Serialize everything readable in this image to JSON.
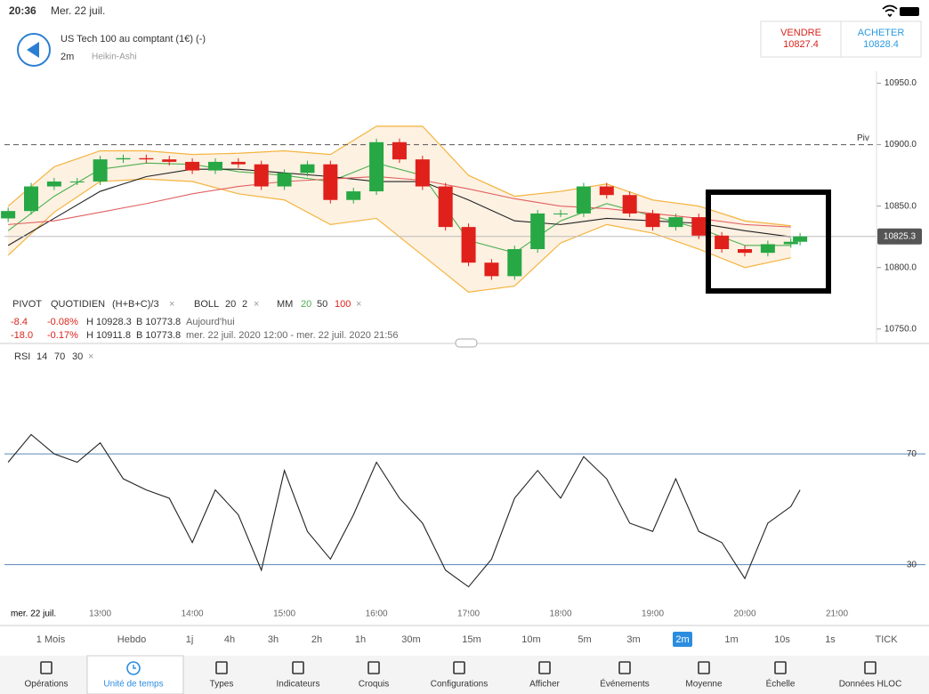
{
  "status_bar": {
    "time": "20:36",
    "date": "Mer. 22 juil."
  },
  "header": {
    "instrument": "US Tech 100 au comptant (1€) (-)",
    "interval": "2m",
    "chart_style": "Heikin-Ashi",
    "sell": {
      "label": "VENDRE",
      "price": 10827.4
    },
    "buy": {
      "label": "ACHETER",
      "price": 10828.4
    }
  },
  "legend": {
    "pivot": [
      "PIVOT",
      "QUOTIDIEN",
      "(H+B+C)/3"
    ],
    "boll": [
      "BOLL",
      "20",
      "2"
    ],
    "mm": [
      "MM",
      "20",
      "50",
      "100"
    ],
    "today": [
      "-8.4",
      "-0.08%",
      "H 10928.3",
      "B 10773.8",
      "Aujourd'hui"
    ],
    "range": [
      "-18.0",
      "-0.17%",
      "H 10911.8",
      "B 10773.8",
      "mer. 22 juil. 2020 12:00 - mer. 22 juil. 2020 21:56"
    ],
    "rsi": [
      "RSI",
      "14",
      "70",
      "30"
    ]
  },
  "chart_data": [
    {
      "type": "candlestick",
      "x": [
        12,
        12.25,
        12.5,
        12.75,
        13,
        13.25,
        13.5,
        13.75,
        14,
        14.25,
        14.5,
        14.75,
        15,
        15.25,
        15.5,
        15.75,
        16,
        16.25,
        16.5,
        16.75,
        17,
        17.25,
        17.5,
        17.75,
        18,
        18.25,
        18.5,
        18.75,
        19,
        19.25,
        19.5,
        19.75,
        20,
        20.25,
        20.5,
        20.6
      ],
      "open": [
        10840,
        10846,
        10866,
        10870,
        10870,
        10888,
        10889,
        10888,
        10886,
        10879,
        10886,
        10884,
        10866,
        10877,
        10884,
        10855,
        10862,
        10902,
        10888,
        10866,
        10833,
        10804,
        10793,
        10815,
        10844,
        10844,
        10866,
        10859,
        10844,
        10833,
        10841,
        10826,
        10815,
        10812,
        10819,
        10821
      ],
      "close": [
        10846,
        10866,
        10870,
        10870,
        10888,
        10889,
        10888,
        10886,
        10879,
        10886,
        10884,
        10866,
        10877,
        10884,
        10855,
        10862,
        10902,
        10888,
        10866,
        10833,
        10804,
        10793,
        10815,
        10844,
        10844,
        10866,
        10859,
        10844,
        10833,
        10841,
        10826,
        10815,
        10812,
        10819,
        10821,
        10825.3
      ],
      "up_color": "#27a844",
      "down_color": "#e0201b",
      "bands": {
        "x": [
          12,
          12.5,
          13,
          13.5,
          14,
          14.5,
          15,
          15.5,
          16,
          16.5,
          17,
          17.5,
          18,
          18.5,
          19,
          19.5,
          20,
          20.5
        ],
        "upper": [
          10850,
          10882,
          10895,
          10895,
          10892,
          10893,
          10895,
          10892,
          10915,
          10915,
          10875,
          10858,
          10862,
          10868,
          10855,
          10850,
          10838,
          10834
        ],
        "lower": [
          10810,
          10845,
          10870,
          10872,
          10870,
          10860,
          10855,
          10835,
          10840,
          10810,
          10780,
          10785,
          10820,
          10835,
          10828,
          10815,
          10800,
          10808
        ],
        "color": "#f4b43f",
        "fill": "#fdf1e2"
      },
      "moving_averages": [
        {
          "color": "#4caf50",
          "values": [
            10830,
            10858,
            10880,
            10885,
            10884,
            10878,
            10875,
            10870,
            10885,
            10875,
            10822,
            10812,
            10838,
            10852,
            10842,
            10832,
            10818,
            10818
          ]
        },
        {
          "color": "#222222",
          "values": [
            10818,
            10840,
            10862,
            10874,
            10880,
            10880,
            10877,
            10874,
            10870,
            10870,
            10855,
            10838,
            10835,
            10840,
            10838,
            10836,
            10830,
            10825
          ]
        },
        {
          "color": "#e06060",
          "values": [
            10835,
            10838,
            10845,
            10852,
            10860,
            10866,
            10870,
            10872,
            10874,
            10871,
            10864,
            10856,
            10850,
            10848,
            10844,
            10840,
            10835,
            10833
          ]
        }
      ],
      "pivot": {
        "label": "Piv",
        "value": 10900
      },
      "last_price": 10825.3,
      "xlim": [
        11.96,
        21.43
      ],
      "ylim": [
        10739,
        10967
      ],
      "yticks": [
        {
          "value": 10950,
          "label": "10950.0"
        },
        {
          "value": 10900,
          "label": "10900.0"
        },
        {
          "value": 10850,
          "label": "10850.0"
        },
        {
          "value": 10800,
          "label": "10800.0"
        },
        {
          "value": 10750,
          "label": "10750.0"
        }
      ]
    },
    {
      "type": "line",
      "x": [
        12,
        12.25,
        12.5,
        12.75,
        13,
        13.25,
        13.5,
        13.75,
        14,
        14.25,
        14.5,
        14.75,
        15,
        15.25,
        15.5,
        15.75,
        16,
        16.25,
        16.5,
        16.75,
        17,
        17.25,
        17.5,
        17.75,
        18,
        18.25,
        18.5,
        18.75,
        19,
        19.25,
        19.5,
        19.75,
        20,
        20.25,
        20.5,
        20.6
      ],
      "values": [
        67,
        77,
        70,
        67,
        74,
        61,
        57,
        54,
        38,
        57,
        48,
        28,
        64,
        42,
        32,
        48,
        67,
        54,
        45,
        28,
        22,
        32,
        54,
        64,
        54,
        69,
        61,
        45,
        42,
        61,
        42,
        38,
        25,
        45,
        51,
        57
      ],
      "color": "#222222",
      "level_color": "#5b86b8",
      "xlim": [
        11.96,
        21.43
      ],
      "ylim": [
        9,
        107
      ],
      "yticks": [
        70,
        30
      ],
      "xticks": [
        {
          "value": 13,
          "label": "13:00"
        },
        {
          "value": 14,
          "label": "14:00"
        },
        {
          "value": 15,
          "label": "15:00"
        },
        {
          "value": 16,
          "label": "16:00"
        },
        {
          "value": 17,
          "label": "17:00"
        },
        {
          "value": 18,
          "label": "18:00"
        },
        {
          "value": 19,
          "label": "19:00"
        },
        {
          "value": 20,
          "label": "20:00"
        },
        {
          "value": 21,
          "label": "21:00"
        }
      ],
      "x_date_label": "mer. 22 juil."
    }
  ],
  "timeframes": {
    "items": [
      "1 Mois",
      "Hebdo",
      "1j",
      "4h",
      "3h",
      "2h",
      "1h",
      "30m",
      "15m",
      "10m",
      "5m",
      "3m",
      "2m",
      "1m",
      "10s",
      "1s",
      "TICK"
    ],
    "active": 12
  },
  "toolbar": {
    "items": [
      "Opérations",
      "Unité de temps",
      "Types",
      "Indicateurs",
      "Croquis",
      "Configurations",
      "Afficher",
      "Événements",
      "Moyenne",
      "Échelle",
      "Données HLOC"
    ],
    "active": 1
  }
}
